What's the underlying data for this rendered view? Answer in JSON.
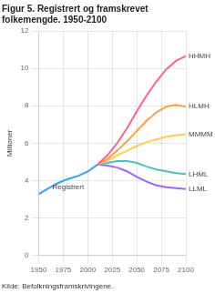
{
  "chart_data": {
    "type": "line",
    "title": "Figur 5. Registrert og framskrevet\nfolkemengde. 1950-2100",
    "ylabel": "Millioner",
    "annotations": [
      "Kilde: Befolkningsframskrivingene."
    ],
    "xlim": [
      1950,
      2100
    ],
    "xticks": [
      1950,
      1975,
      2000,
      2025,
      2050,
      2075,
      2100
    ],
    "ylim": [
      0,
      12
    ],
    "yticks": [
      0,
      2,
      4,
      6,
      8,
      10,
      12
    ],
    "grid": true,
    "series": [
      {
        "name": "Registrert",
        "x": [
          1950,
          1960,
          1970,
          1980,
          1990,
          2000,
          2010
        ],
        "values": [
          3.28,
          3.59,
          3.88,
          4.09,
          4.25,
          4.49,
          4.86
        ]
      },
      {
        "name": "HHMH",
        "x": [
          2010,
          2020,
          2030,
          2040,
          2050,
          2060,
          2070,
          2080,
          2090,
          2100
        ],
        "values": [
          4.86,
          5.35,
          6.0,
          6.8,
          7.7,
          8.55,
          9.3,
          9.95,
          10.4,
          10.65
        ]
      },
      {
        "name": "HLMH",
        "x": [
          2010,
          2020,
          2030,
          2040,
          2050,
          2060,
          2070,
          2080,
          2090,
          2100
        ],
        "values": [
          4.86,
          5.15,
          5.6,
          6.1,
          6.65,
          7.2,
          7.65,
          7.95,
          8.05,
          7.95
        ]
      },
      {
        "name": "MMMM",
        "x": [
          2010,
          2020,
          2030,
          2040,
          2050,
          2060,
          2070,
          2080,
          2090,
          2100
        ],
        "values": [
          4.86,
          5.05,
          5.35,
          5.6,
          5.85,
          6.05,
          6.2,
          6.35,
          6.42,
          6.48
        ]
      },
      {
        "name": "LHML",
        "x": [
          2010,
          2020,
          2030,
          2040,
          2050,
          2060,
          2070,
          2080,
          2090,
          2100
        ],
        "values": [
          4.86,
          4.95,
          5.05,
          5.05,
          4.95,
          4.75,
          4.6,
          4.5,
          4.4,
          4.35
        ]
      },
      {
        "name": "LLML",
        "x": [
          2010,
          2020,
          2030,
          2040,
          2050,
          2060,
          2070,
          2080,
          2090,
          2100
        ],
        "values": [
          4.86,
          4.8,
          4.7,
          4.5,
          4.2,
          3.95,
          3.75,
          3.65,
          3.6,
          3.55
        ]
      }
    ]
  }
}
